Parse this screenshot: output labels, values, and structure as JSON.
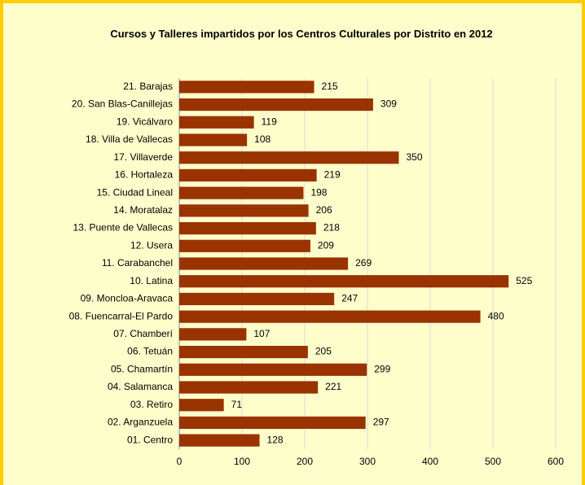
{
  "chart_data": {
    "type": "bar",
    "orientation": "horizontal",
    "title": "Cursos y Talleres impartidos por los Centros Culturales por Distrito en 2012",
    "categories": [
      "21. Barajas",
      "20. San Blas-Canillejas",
      "19. Vicálvaro",
      "18. Villa de Vallecas",
      "17. Villaverde",
      "16. Hortaleza",
      "15. Ciudad Lineal",
      "14. Moratalaz",
      "13. Puente de Vallecas",
      "12. Usera",
      "11. Carabanchel",
      "10. Latina",
      "09. Moncloa-Aravaca",
      "08. Fuencarral-El Pardo",
      "07. Chamberí",
      "06. Tetuán",
      "05. Chamartín",
      "04. Salamanca",
      "03. Retiro",
      "02. Arganzuela",
      "01. Centro"
    ],
    "values": [
      215,
      309,
      119,
      108,
      350,
      219,
      198,
      206,
      218,
      209,
      269,
      525,
      247,
      480,
      107,
      205,
      299,
      221,
      71,
      297,
      128
    ],
    "color": "#993300",
    "xlim": [
      0,
      600
    ],
    "xticks": [
      0,
      100,
      200,
      300,
      400,
      500,
      600
    ],
    "grid": true
  }
}
